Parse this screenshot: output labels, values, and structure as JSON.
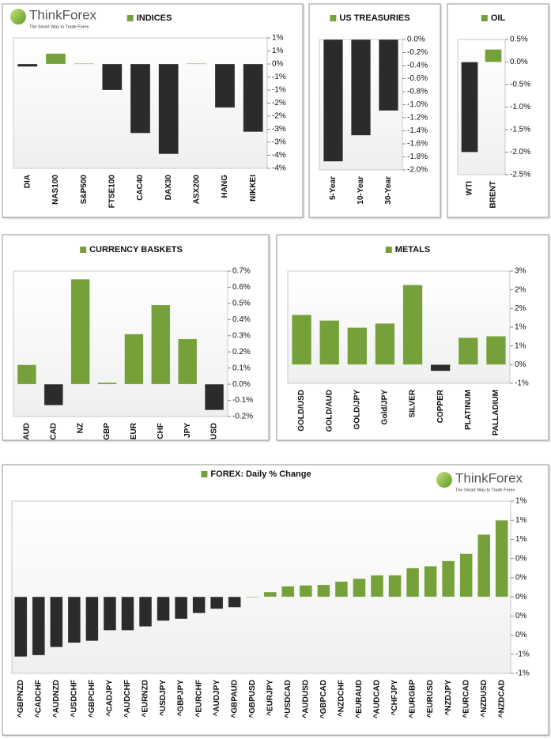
{
  "logo": {
    "name": "ThinkForex",
    "tagline": "The Smart Way to Trade Forex"
  },
  "chart_data": [
    {
      "type": "bar",
      "title": "INDICES",
      "categories": [
        "DIA",
        "NAS100",
        "S&P500",
        "FTSE100",
        "CAC40",
        "DAX30",
        "ASX200",
        "HANG",
        "NIKKEI"
      ],
      "values": [
        -0.1,
        0.4,
        0.02,
        -1.0,
        -2.65,
        -3.45,
        0.02,
        -1.67,
        -2.6
      ],
      "positive_color": "#76a13a",
      "negative_color": "#2b2b2b",
      "ylim": [
        -4,
        1
      ],
      "yticks": [
        {
          "value": 1,
          "label": "1%"
        },
        {
          "value": 0.5,
          "label": "1%"
        },
        {
          "value": 0,
          "label": "0%"
        },
        {
          "value": -0.5,
          "label": "-1%"
        },
        {
          "value": -1,
          "label": "-1%"
        },
        {
          "value": -1.5,
          "label": "-2%"
        },
        {
          "value": -2,
          "label": "-2%"
        },
        {
          "value": -2.5,
          "label": "-3%"
        },
        {
          "value": -3,
          "label": "-3%"
        },
        {
          "value": -3.5,
          "label": "-4%"
        },
        {
          "value": -4,
          "label": "-4%"
        }
      ]
    },
    {
      "type": "bar",
      "title": "US TREASURIES",
      "categories": [
        "5-Year",
        "10-Year",
        "30-Year"
      ],
      "values": [
        -1.87,
        -1.47,
        -1.09
      ],
      "positive_color": "#76a13a",
      "negative_color": "#2b2b2b",
      "ylim": [
        -2,
        0
      ],
      "yticks": [
        {
          "value": 0,
          "label": "0.0%"
        },
        {
          "value": -0.2,
          "label": "-0.2%"
        },
        {
          "value": -0.4,
          "label": "-0.4%"
        },
        {
          "value": -0.6,
          "label": "-0.6%"
        },
        {
          "value": -0.8,
          "label": "-0.8%"
        },
        {
          "value": -1.0,
          "label": "-1.0%"
        },
        {
          "value": -1.2,
          "label": "-1.2%"
        },
        {
          "value": -1.4,
          "label": "-1.4%"
        },
        {
          "value": -1.6,
          "label": "-1.6%"
        },
        {
          "value": -1.8,
          "label": "-1.8%"
        },
        {
          "value": -2.0,
          "label": "-2.0%"
        }
      ]
    },
    {
      "type": "bar",
      "title": "OIL",
      "categories": [
        "WTI",
        "BRENT"
      ],
      "values": [
        -2.0,
        0.28
      ],
      "positive_color": "#76a13a",
      "negative_color": "#2b2b2b",
      "ylim": [
        -2.5,
        0.5
      ],
      "yticks": [
        {
          "value": 0.5,
          "label": "0.5%"
        },
        {
          "value": 0,
          "label": "0.0%"
        },
        {
          "value": -0.5,
          "label": "-0.5%"
        },
        {
          "value": -1.0,
          "label": "-1.0%"
        },
        {
          "value": -1.5,
          "label": "-1.5%"
        },
        {
          "value": -2.0,
          "label": "-2.0%"
        },
        {
          "value": -2.5,
          "label": "-2.5%"
        }
      ]
    },
    {
      "type": "bar",
      "title": "CURRENCY BASKETS",
      "categories": [
        "AUD",
        "CAD",
        "NZ",
        "GBP",
        "EUR",
        "CHF",
        "JPY",
        "USD"
      ],
      "values": [
        0.12,
        -0.13,
        0.65,
        0.01,
        0.31,
        0.49,
        0.28,
        -0.16
      ],
      "positive_color": "#76a13a",
      "negative_color": "#2b2b2b",
      "ylim": [
        -0.2,
        0.7
      ],
      "yticks": [
        {
          "value": 0.7,
          "label": "0.7%"
        },
        {
          "value": 0.6,
          "label": "0.6%"
        },
        {
          "value": 0.5,
          "label": "0.5%"
        },
        {
          "value": 0.4,
          "label": "0.4%"
        },
        {
          "value": 0.3,
          "label": "0.3%"
        },
        {
          "value": 0.2,
          "label": "0.2%"
        },
        {
          "value": 0.1,
          "label": "0.1%"
        },
        {
          "value": 0,
          "label": "0.0%"
        },
        {
          "value": -0.1,
          "label": "-0.1%"
        },
        {
          "value": -0.2,
          "label": "-0.2%"
        }
      ]
    },
    {
      "type": "bar",
      "title": "METALS",
      "categories": [
        "GOLD/USD",
        "GOLD/AUD",
        "GOLD/JPY",
        "Gold/JPY",
        "SILVER",
        "COPPER",
        "PLATINUM",
        "PALLADIUM"
      ],
      "values": [
        1.33,
        1.18,
        0.99,
        1.1,
        2.13,
        -0.17,
        0.72,
        0.76
      ],
      "positive_color": "#76a13a",
      "negative_color": "#2b2b2b",
      "ylim": [
        -0.5,
        2.5
      ],
      "yticks": [
        {
          "value": 2.5,
          "label": "3%"
        },
        {
          "value": 2,
          "label": "2%"
        },
        {
          "value": 1.5,
          "label": "2%"
        },
        {
          "value": 1,
          "label": "1%"
        },
        {
          "value": 0.5,
          "label": "1%"
        },
        {
          "value": 0,
          "label": "0%"
        },
        {
          "value": -0.5,
          "label": "-1%"
        }
      ]
    },
    {
      "type": "bar",
      "title": "FOREX: Daily % Change",
      "categories": [
        "^GBPNZD",
        "^CADCHF",
        "^AUDNZD",
        "^USDCHF",
        "^GBPCHF",
        "^CADJPY",
        "^AUDCHF",
        "^EURNZD",
        "^USDJPY",
        "^GBPJPY",
        "^EURCHF",
        "^AUDJPY",
        "^GBPAUD",
        "^GBPUSD",
        "^EURJPY",
        "^USDCAD",
        "^AUDUSD",
        "^GBPCAD",
        "^NZDCHF",
        "^EURAUD",
        "^AUDCAD",
        "^CHFJPY",
        "^EURGBP",
        "^EURUSD",
        "^NZDJPY",
        "^EURCAD",
        "^NZDUSD",
        "^NZDCAD"
      ],
      "values": [
        -0.625,
        -0.61,
        -0.525,
        -0.48,
        -0.46,
        -0.35,
        -0.35,
        -0.31,
        -0.25,
        -0.23,
        -0.17,
        -0.125,
        -0.11,
        0.0,
        0.05,
        0.11,
        0.12,
        0.125,
        0.16,
        0.19,
        0.225,
        0.225,
        0.3,
        0.32,
        0.375,
        0.45,
        0.65,
        0.8
      ],
      "positive_color": "#76a13a",
      "negative_color": "#2b2b2b",
      "ylim": [
        -0.8,
        1.0
      ],
      "yticks": [
        {
          "value": 1.0,
          "label": "1%"
        },
        {
          "value": 0.8,
          "label": "1%"
        },
        {
          "value": 0.6,
          "label": "1%"
        },
        {
          "value": 0.4,
          "label": "0%"
        },
        {
          "value": 0.2,
          "label": "0%"
        },
        {
          "value": 0,
          "label": "0%"
        },
        {
          "value": -0.2,
          "label": "0%"
        },
        {
          "value": -0.4,
          "label": "0%"
        },
        {
          "value": -0.6,
          "label": "-1%"
        },
        {
          "value": -0.8,
          "label": "-1%"
        }
      ]
    }
  ]
}
